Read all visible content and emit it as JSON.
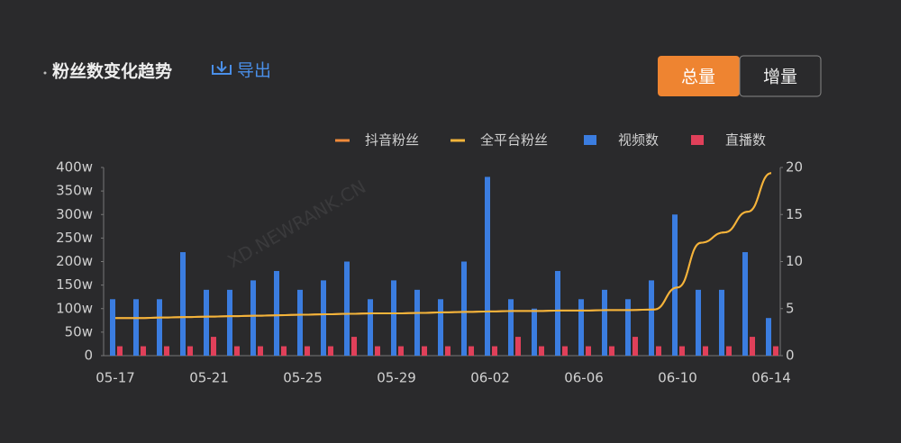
{
  "chart_data": {
    "type": "bar",
    "title": "粉丝数变化趋势",
    "categories": [
      "05-17",
      null,
      null,
      null,
      "05-21",
      null,
      null,
      null,
      "05-25",
      null,
      null,
      null,
      "05-29",
      null,
      null,
      null,
      "06-02",
      null,
      null,
      null,
      "06-06",
      null,
      null,
      null,
      "06-10",
      null,
      null,
      null,
      "06-14"
    ],
    "series": [
      {
        "name": "抖音粉丝",
        "type": "line",
        "color": "#f08a3a",
        "values": [
          80,
          80,
          81,
          82,
          83,
          84,
          85,
          86,
          87,
          88,
          89,
          90,
          90,
          91,
          92,
          93,
          94,
          95,
          95,
          96,
          96,
          97,
          97,
          98,
          145,
          240,
          262,
          306,
          388
        ]
      },
      {
        "name": "全平台粉丝",
        "type": "line",
        "color": "#f3b43a",
        "values": [
          80,
          80,
          81,
          82,
          83,
          84,
          85,
          86,
          87,
          88,
          89,
          90,
          90,
          91,
          92,
          93,
          94,
          95,
          95,
          96,
          96,
          97,
          97,
          98,
          145,
          240,
          262,
          306,
          388
        ]
      },
      {
        "name": "视频数",
        "type": "bar",
        "axis": "y2",
        "color": "#3b7de0",
        "values": [
          6,
          6,
          6,
          11,
          7,
          7,
          8,
          9,
          7,
          8,
          10,
          6,
          8,
          7,
          6,
          10,
          19,
          6,
          5,
          9,
          6,
          7,
          6,
          8,
          15,
          7,
          7,
          11,
          4
        ]
      },
      {
        "name": "直播数",
        "type": "bar",
        "axis": "y2",
        "color": "#e0405a",
        "values": [
          1,
          1,
          1,
          1,
          2,
          1,
          1,
          1,
          1,
          1,
          2,
          1,
          1,
          1,
          1,
          1,
          1,
          2,
          1,
          1,
          1,
          1,
          2,
          1,
          1,
          1,
          1,
          2,
          1
        ]
      }
    ],
    "ylim": [
      0,
      400
    ],
    "yticks": [
      0,
      {
        "value": 50,
        "label": "50w"
      },
      {
        "value": 100,
        "label": "100w"
      },
      {
        "value": 150,
        "label": "150w"
      },
      {
        "value": 200,
        "label": "200w"
      },
      {
        "value": 250,
        "label": "250w"
      },
      {
        "value": 300,
        "label": "300w"
      },
      {
        "value": 350,
        "label": "350w"
      },
      {
        "value": 400,
        "label": "400w"
      }
    ],
    "y2lim": [
      0,
      20
    ],
    "y2ticks": [
      0,
      5,
      10,
      15,
      20
    ]
  },
  "ui": {
    "export": "导出",
    "toggle": [
      "总量",
      "增量"
    ],
    "watermark": "XD.NEWRANK.CN"
  }
}
